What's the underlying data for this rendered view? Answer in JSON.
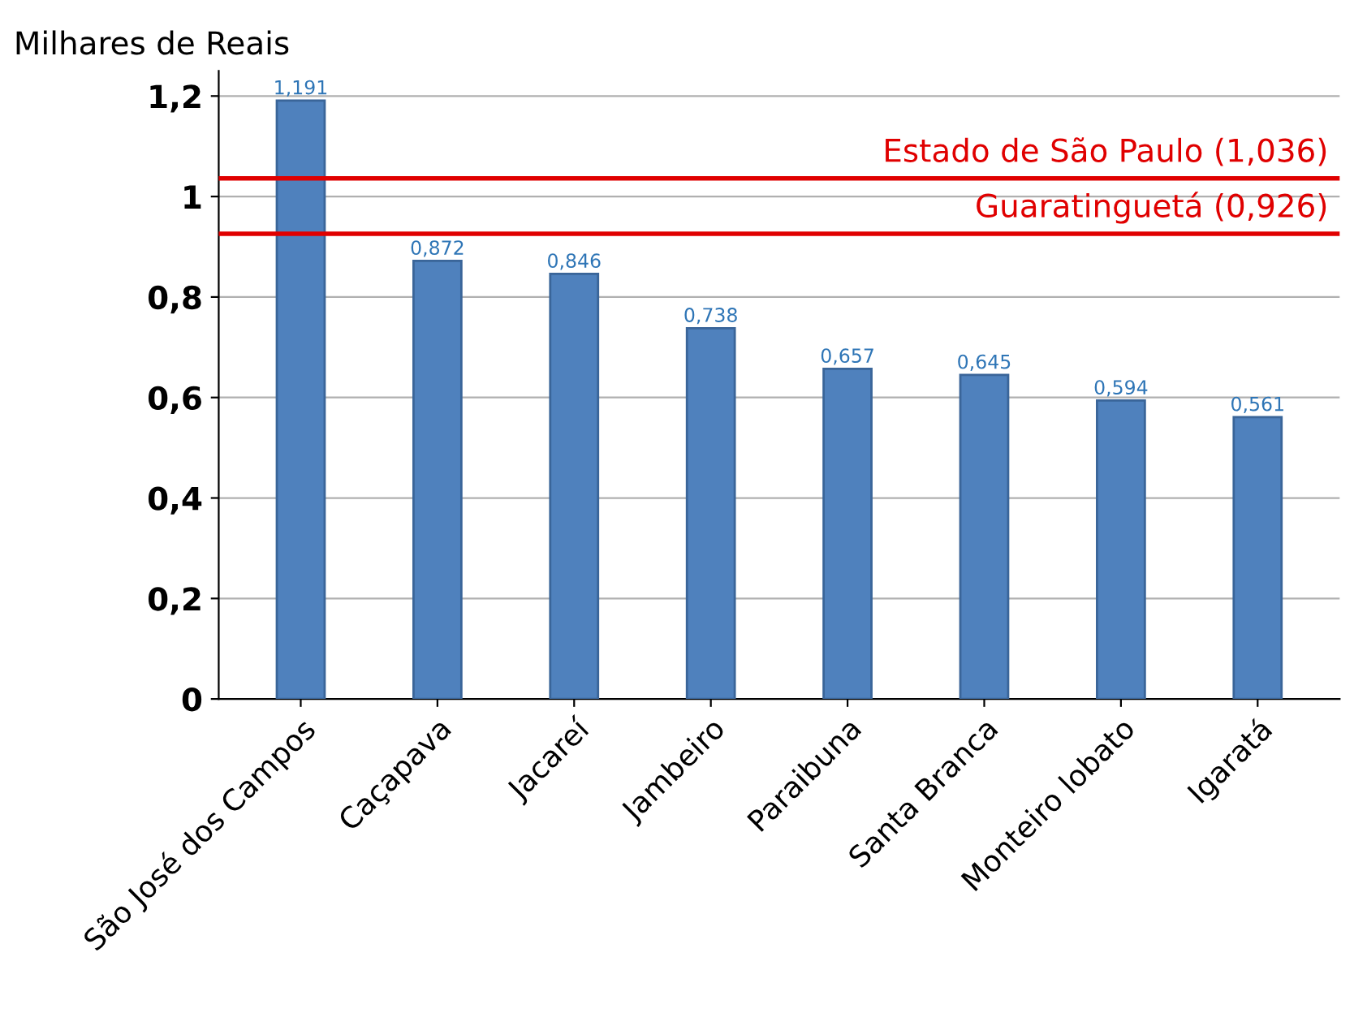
{
  "chart_data": {
    "type": "bar",
    "ylabel": "Milhares de Reais",
    "categories": [
      "São José dos Campos",
      "Caçapava",
      "Jacareí",
      "Jambeiro",
      "Paraibuna",
      "Santa Branca",
      "Monteiro lobato",
      "Igaratá"
    ],
    "values": [
      1.191,
      0.872,
      0.846,
      0.738,
      0.657,
      0.645,
      0.594,
      0.561
    ],
    "value_labels": [
      "1,191",
      "0,872",
      "0,846",
      "0,738",
      "0,657",
      "0,645",
      "0,594",
      "0,561"
    ],
    "color": "#4f81bd",
    "ylim": [
      0,
      1.25
    ],
    "yticks": [
      0,
      {
        "value": 0.2,
        "label": "0,2"
      },
      {
        "value": 0.4,
        "label": "0,4"
      },
      {
        "value": 0.6,
        "label": "0,6"
      },
      {
        "value": 0.8,
        "label": "0,8"
      },
      1,
      {
        "value": 1.2,
        "label": "1,2"
      }
    ],
    "ref_lines": [
      {
        "axis": "y",
        "value": 1.036,
        "label": "Estado de São Paulo (1,036)",
        "color": "#e00000"
      },
      {
        "axis": "y",
        "value": 0.926,
        "label": "Guaratinguetá (0,926)",
        "color": "#e00000"
      }
    ],
    "grid": "y",
    "legend": false
  }
}
